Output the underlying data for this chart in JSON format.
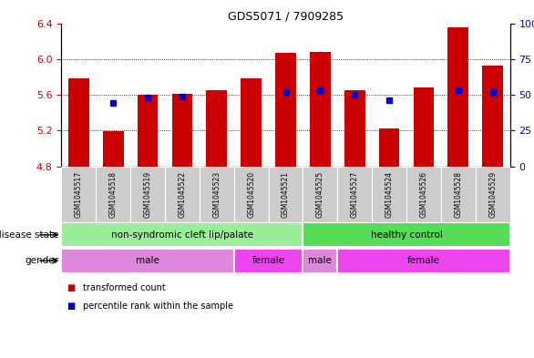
{
  "title": "GDS5071 / 7909285",
  "samples": [
    "GSM1045517",
    "GSM1045518",
    "GSM1045519",
    "GSM1045522",
    "GSM1045523",
    "GSM1045520",
    "GSM1045521",
    "GSM1045525",
    "GSM1045527",
    "GSM1045524",
    "GSM1045526",
    "GSM1045528",
    "GSM1045529"
  ],
  "bar_values": [
    5.78,
    5.19,
    5.6,
    5.61,
    5.65,
    5.78,
    6.07,
    6.08,
    5.65,
    5.22,
    5.68,
    6.35,
    5.93
  ],
  "bar_bottom": 4.8,
  "percentile_values": [
    null,
    5.51,
    5.57,
    5.58,
    null,
    null,
    5.63,
    5.65,
    5.6,
    5.54,
    null,
    5.65,
    5.63
  ],
  "ylim_left": [
    4.8,
    6.4
  ],
  "ylim_right": [
    0,
    100
  ],
  "yticks_left": [
    4.8,
    5.2,
    5.6,
    6.0,
    6.4
  ],
  "yticks_right": [
    0,
    25,
    50,
    75,
    100
  ],
  "bar_color": "#cc0000",
  "dot_color": "#0000cc",
  "bar_width": 0.6,
  "disease_state_groups": [
    {
      "label": "non-syndromic cleft lip/palate",
      "start": 0,
      "end": 6,
      "color": "#99ee99"
    },
    {
      "label": "healthy control",
      "start": 7,
      "end": 12,
      "color": "#55dd55"
    }
  ],
  "gender_groups": [
    {
      "label": "male",
      "start": 0,
      "end": 4,
      "color": "#dd88dd"
    },
    {
      "label": "female",
      "start": 5,
      "end": 6,
      "color": "#ee44ee"
    },
    {
      "label": "male",
      "start": 7,
      "end": 7,
      "color": "#dd88dd"
    },
    {
      "label": "female",
      "start": 8,
      "end": 12,
      "color": "#ee44ee"
    }
  ],
  "tick_label_color_left": "#cc0000",
  "tick_label_color_right": "#0000cc",
  "label_bg_color": "#cccccc",
  "grid_dotted_at": [
    5.2,
    5.6,
    6.0
  ],
  "left_labels": [
    "disease state",
    "gender"
  ],
  "legend_items": [
    {
      "label": "transformed count",
      "color": "#cc0000"
    },
    {
      "label": "percentile rank within the sample",
      "color": "#0000cc"
    }
  ]
}
